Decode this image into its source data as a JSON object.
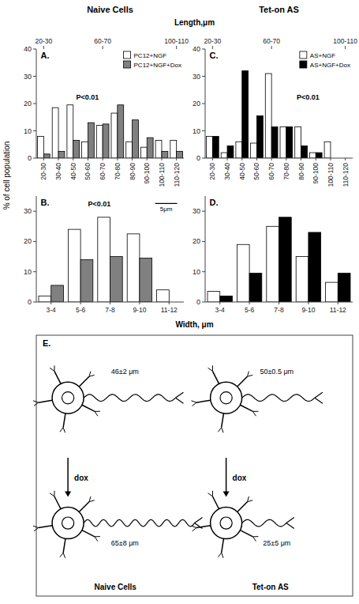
{
  "chart_data": [
    {
      "type": "bar",
      "title": "A.",
      "subtitle": "Naive Cells",
      "ylabel": "% of cell population",
      "x2_label": "Length,μm",
      "categories": [
        "20-30",
        "30-40",
        "40-50",
        "50-60",
        "60-70",
        "70-80",
        "80-90",
        "90-100",
        "100-110",
        "110-120"
      ],
      "x2_categories": [
        "20-30",
        null,
        null,
        null,
        "60-70",
        null,
        null,
        null,
        null,
        "100-110"
      ],
      "series": [
        {
          "name": "PC12+NGF",
          "color": "#FFFFFF",
          "values": [
            8,
            18.5,
            19.5,
            6,
            12,
            16.5,
            6,
            4,
            6.5,
            6.5
          ]
        },
        {
          "name": "PC12+NGF+Dox",
          "color": "#808080",
          "values": [
            1.5,
            2.5,
            6.5,
            13,
            12.5,
            19.5,
            14,
            7.5,
            2.5,
            2.5
          ]
        }
      ],
      "legend": "upper-right",
      "annotations": [
        "P<0.01"
      ],
      "ylim": [
        0,
        40
      ],
      "yticks": [
        0,
        10,
        20,
        30,
        40
      ]
    },
    {
      "type": "bar",
      "title": "B.",
      "xlabel": "Width, μm",
      "categories": [
        "3-4",
        "5-6",
        "7-8",
        "9-10",
        "11-12"
      ],
      "series": [
        {
          "color": "#FFFFFF",
          "values": [
            2,
            24,
            28,
            22.5,
            4
          ]
        },
        {
          "color": "#808080",
          "values": [
            5.5,
            14,
            15,
            14.5,
            0
          ]
        }
      ],
      "annotations": [
        "P<0.01",
        "5μm"
      ],
      "ylim": [
        0,
        35
      ],
      "yticks": [
        0,
        10,
        20,
        30
      ]
    },
    {
      "type": "bar",
      "title": "C.",
      "subtitle": "Tet-on AS",
      "categories": [
        "20-30",
        "30-40",
        "40-50",
        "50-60",
        "60-70",
        "70-80",
        "80-90",
        "90-100",
        "100-110",
        "110-120"
      ],
      "x2_categories": [
        "20-30",
        null,
        null,
        null,
        "60-70",
        null,
        null,
        null,
        null,
        "100-110"
      ],
      "series": [
        {
          "name": "AS+NGF",
          "color": "#FFFFFF",
          "values": [
            8,
            2,
            6,
            5.5,
            31,
            11.5,
            11.5,
            2,
            6,
            0
          ]
        },
        {
          "name": "AS+NGF+Dox",
          "color": "#000000",
          "values": [
            8,
            4.5,
            32,
            15.5,
            11.5,
            11.5,
            4.5,
            2,
            0,
            0
          ]
        }
      ],
      "legend": "upper-right",
      "annotations": [
        "P<0.01"
      ],
      "ylim": [
        0,
        40
      ],
      "yticks": [
        0,
        10,
        20,
        30,
        40
      ]
    },
    {
      "type": "bar",
      "title": "D.",
      "categories": [
        "3-4",
        "5-6",
        "7-8",
        "9-10",
        "11-12"
      ],
      "series": [
        {
          "color": "#FFFFFF",
          "values": [
            3.5,
            19,
            25,
            15,
            6.5
          ]
        },
        {
          "color": "#000000",
          "values": [
            2,
            9.5,
            28,
            23,
            9.5
          ]
        }
      ],
      "ylim": [
        0,
        35
      ],
      "yticks": [
        0,
        10,
        20,
        30
      ]
    },
    {
      "type": "diagram",
      "title": "E.",
      "groups": [
        {
          "name": "Naive Cells",
          "top": "46±2 μm",
          "bottom": "65±8 μm",
          "arrow": "dox"
        },
        {
          "name": "Tet-on AS",
          "top": "50±0.5 μm",
          "bottom": "25±5 μm",
          "arrow": "dox"
        }
      ]
    }
  ]
}
